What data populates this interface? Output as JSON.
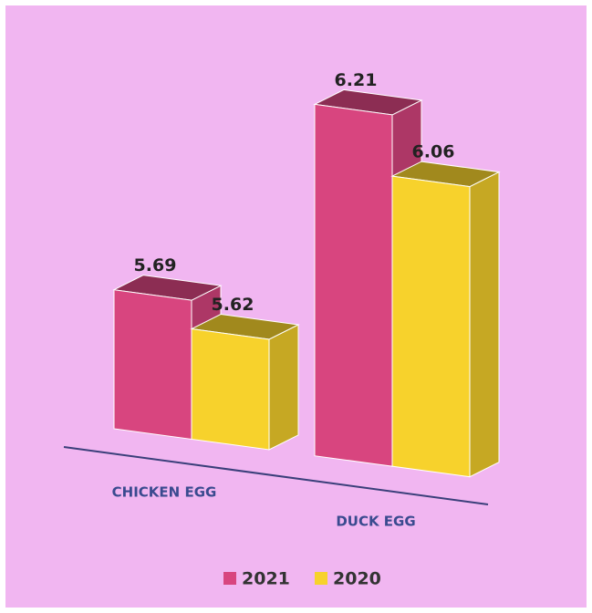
{
  "chart_data": {
    "type": "bar3d",
    "categories": [
      "CHICKEN EGG",
      "DUCK EGG"
    ],
    "series": [
      {
        "name": "2021",
        "color": "#d8457f",
        "values": [
          5.69,
          6.21
        ]
      },
      {
        "name": "2020",
        "color": "#f7d22c",
        "values": [
          5.62,
          6.06
        ]
      }
    ],
    "ylim": [
      5.35,
      6.3
    ]
  }
}
